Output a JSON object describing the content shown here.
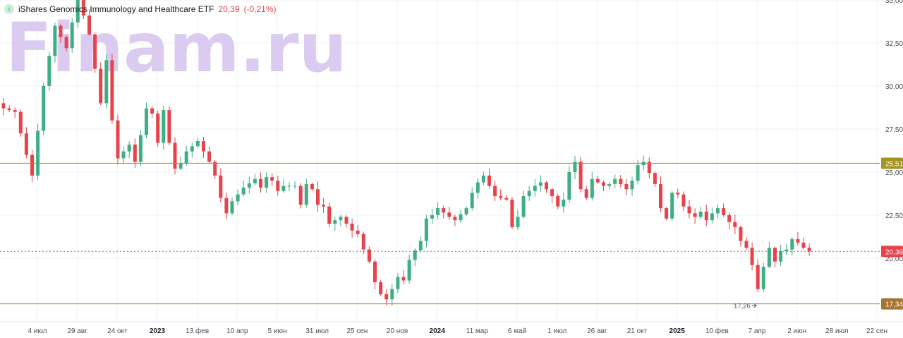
{
  "header": {
    "badge": "i",
    "title": "iShares Genomics Immunology and Healthcare ETF",
    "price": "20,39",
    "change": "(-0,21%)"
  },
  "watermark": "Finam.ru",
  "colors": {
    "up": "#3fae84",
    "down": "#e8434b",
    "level": "#a39423",
    "support": "#a5742f",
    "current": "#e8434b",
    "watermark": "#dccbf0"
  },
  "chart_data": {
    "type": "candlestick",
    "title": "iShares Genomics Immunology and Healthcare ETF",
    "ylim": [
      16.3,
      35.0
    ],
    "y_ticks": [
      "35,00",
      "32,50",
      "30,00",
      "27,50",
      "25,00",
      "22,50",
      "20,00"
    ],
    "x_labels": [
      "4 июл",
      "29 авг",
      "24 окт",
      "2023",
      "13 фев",
      "10 апр",
      "5 июн",
      "31 июл",
      "25 сен",
      "20 ноя",
      "2024",
      "11 мар",
      "6 май",
      "1 июл",
      "26 авг",
      "21 окт",
      "2025",
      "10 фев",
      "7 апр",
      "2 июн",
      "28 июл",
      "22 сен"
    ],
    "close_path": [
      [
        0,
        28.7
      ],
      [
        2,
        28.5
      ],
      [
        4,
        26.0
      ],
      [
        5,
        24.8
      ],
      [
        7,
        30.0
      ],
      [
        9,
        33.5
      ],
      [
        11,
        32.2
      ],
      [
        13,
        35.2
      ],
      [
        15,
        33.0
      ],
      [
        17,
        29.0
      ],
      [
        18,
        31.5
      ],
      [
        19,
        28.0
      ],
      [
        20,
        25.8
      ],
      [
        22,
        26.6
      ],
      [
        23,
        25.6
      ],
      [
        25,
        28.7
      ],
      [
        26,
        28.4
      ],
      [
        27,
        26.7
      ],
      [
        28,
        28.6
      ],
      [
        29,
        26.7
      ],
      [
        30,
        25.2
      ],
      [
        31,
        25.5
      ],
      [
        32,
        26.2
      ],
      [
        34,
        26.8
      ],
      [
        36,
        25.6
      ],
      [
        37,
        24.8
      ],
      [
        38,
        23.5
      ],
      [
        39,
        22.6
      ],
      [
        40,
        23.3
      ],
      [
        42,
        24.1
      ],
      [
        44,
        24.6
      ],
      [
        45,
        24.1
      ],
      [
        46,
        24.7
      ],
      [
        47,
        24.5
      ],
      [
        48,
        23.9
      ],
      [
        49,
        24.2
      ],
      [
        51,
        24.2
      ],
      [
        52,
        23.1
      ],
      [
        53,
        24.3
      ],
      [
        54,
        24.0
      ],
      [
        55,
        23.1
      ],
      [
        56,
        23.0
      ],
      [
        57,
        22.0
      ],
      [
        59,
        22.4
      ],
      [
        60,
        22.0
      ],
      [
        61,
        21.6
      ],
      [
        62,
        21.4
      ],
      [
        63,
        20.5
      ],
      [
        64,
        19.8
      ],
      [
        65,
        18.6
      ],
      [
        66,
        17.9
      ],
      [
        67,
        17.6
      ],
      [
        68,
        18.2
      ],
      [
        69,
        18.9
      ],
      [
        70,
        18.7
      ],
      [
        71,
        19.9
      ],
      [
        73,
        21.0
      ],
      [
        74,
        22.3
      ],
      [
        75,
        22.5
      ],
      [
        76,
        22.9
      ],
      [
        78,
        22.4
      ],
      [
        79,
        22.2
      ],
      [
        81,
        22.9
      ],
      [
        82,
        23.8
      ],
      [
        83,
        24.4
      ],
      [
        84,
        24.8
      ],
      [
        85,
        24.2
      ],
      [
        86,
        23.6
      ],
      [
        88,
        23.4
      ],
      [
        89,
        21.8
      ],
      [
        90,
        22.4
      ],
      [
        91,
        23.6
      ],
      [
        93,
        24.2
      ],
      [
        94,
        24.4
      ],
      [
        96,
        23.6
      ],
      [
        97,
        23.0
      ],
      [
        98,
        23.4
      ],
      [
        99,
        25.0
      ],
      [
        100,
        25.6
      ],
      [
        101,
        24.0
      ],
      [
        102,
        23.5
      ],
      [
        103,
        24.6
      ],
      [
        105,
        24.2
      ],
      [
        106,
        24.3
      ],
      [
        107,
        24.6
      ],
      [
        108,
        24.3
      ],
      [
        109,
        24.0
      ],
      [
        110,
        24.5
      ],
      [
        111,
        25.4
      ],
      [
        112,
        25.6
      ],
      [
        114,
        24.3
      ],
      [
        115,
        22.9
      ],
      [
        116,
        22.3
      ],
      [
        117,
        23.8
      ],
      [
        118,
        23.7
      ],
      [
        119,
        23.0
      ],
      [
        120,
        22.6
      ],
      [
        121,
        22.4
      ],
      [
        122,
        22.7
      ],
      [
        123,
        22.2
      ],
      [
        124,
        22.6
      ],
      [
        125,
        22.9
      ],
      [
        126,
        22.5
      ],
      [
        127,
        22.1
      ],
      [
        128,
        21.8
      ],
      [
        129,
        21.0
      ],
      [
        130,
        20.6
      ],
      [
        131,
        19.6
      ],
      [
        132,
        18.2
      ],
      [
        133,
        19.5
      ],
      [
        134,
        20.6
      ],
      [
        135,
        19.8
      ],
      [
        136,
        20.4
      ],
      [
        137,
        20.5
      ],
      [
        138,
        21.1
      ],
      [
        139,
        20.9
      ],
      [
        140,
        20.6
      ],
      [
        141,
        20.39
      ]
    ],
    "support_level": {
      "value": 17.34,
      "label": "17,34"
    },
    "resistance_level": {
      "value": 25.51,
      "label": "25,51"
    },
    "current_price": {
      "value": 20.39,
      "label": "20,39"
    },
    "min_annotation": {
      "value": 17.26,
      "label": "17,26"
    },
    "grid": true,
    "legend": "none"
  }
}
